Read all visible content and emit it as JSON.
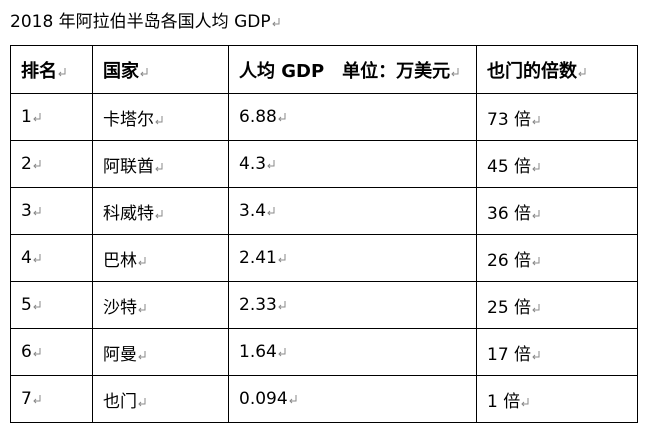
{
  "header": {
    "title": "2018 年阿拉伯半岛各国人均 GDP"
  },
  "table": {
    "columns": [
      "排名",
      "国家",
      "人均 GDP　单位：万美元",
      "也门的倍数"
    ],
    "rows": [
      [
        "1",
        "卡塔尔",
        "6.88",
        "73 倍"
      ],
      [
        "2",
        "阿联酋",
        "4.3",
        "45 倍"
      ],
      [
        "3",
        "科威特",
        "3.4",
        "36 倍"
      ],
      [
        "4",
        "巴林",
        "2.41",
        "26 倍"
      ],
      [
        "5",
        "沙特",
        "2.33",
        "25 倍"
      ],
      [
        "6",
        "阿曼",
        "1.64",
        "17 倍"
      ],
      [
        "7",
        "也门",
        "0.094",
        "1 倍"
      ]
    ]
  }
}
